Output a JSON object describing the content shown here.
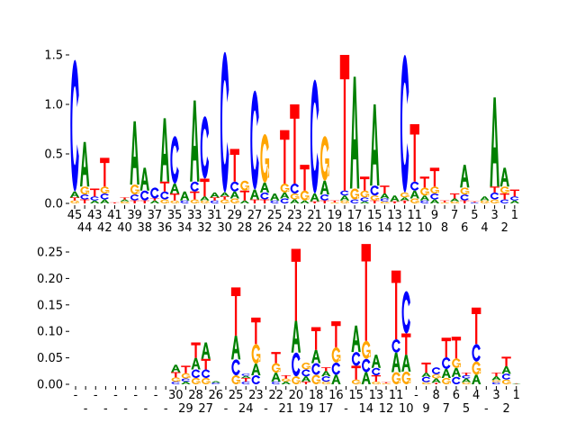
{
  "chart_data": [
    {
      "type": "sequence-logo",
      "title": "",
      "xlabel": "",
      "ylabel": "",
      "ylim": [
        0,
        1.5
      ],
      "yticks": [
        "0.0",
        "0.5",
        "1.0",
        "1.5"
      ],
      "ytick_values": [
        0,
        0.5,
        1.0,
        1.5
      ],
      "xtick_labels": [
        "45",
        "44",
        "43",
        "42",
        "41",
        "40",
        "39",
        "38",
        "37",
        "36",
        "35",
        "34",
        "33",
        "32",
        "31",
        "30",
        "29",
        "28",
        "27",
        "26",
        "25",
        "24",
        "23",
        "22",
        "21",
        "20",
        "19",
        "18",
        "17",
        "16",
        "15",
        "14",
        "13",
        "12",
        "11",
        "10",
        "9",
        "8",
        "7",
        "6",
        "5",
        "4",
        "3",
        "2",
        "1"
      ],
      "stacks": [
        [
          [
            "G",
            0.03
          ],
          [
            "T",
            0.03
          ],
          [
            "A",
            0.06
          ],
          [
            "C",
            1.33
          ]
        ],
        [
          [
            "T",
            0.04
          ],
          [
            "C",
            0.05
          ],
          [
            "G",
            0.08
          ],
          [
            "A",
            0.45
          ]
        ],
        [
          [
            "A",
            0.03
          ],
          [
            "C",
            0.04
          ],
          [
            "T",
            0.08
          ]
        ],
        [
          [
            "A",
            0.04
          ],
          [
            "C",
            0.06
          ],
          [
            "G",
            0.07
          ],
          [
            "T",
            0.29
          ]
        ],
        [
          [
            "T",
            0.01
          ]
        ],
        [
          [
            "G",
            0.02
          ],
          [
            "A",
            0.02
          ],
          [
            "T",
            0.02
          ]
        ],
        [
          [
            "T",
            0.03
          ],
          [
            "C",
            0.06
          ],
          [
            "G",
            0.1
          ],
          [
            "A",
            0.64
          ]
        ],
        [
          [
            "T",
            0.03
          ],
          [
            "C",
            0.1
          ],
          [
            "A",
            0.23
          ]
        ],
        [
          [
            "A",
            0.03
          ],
          [
            "T",
            0.02
          ],
          [
            "C",
            0.11
          ]
        ],
        [
          [
            "G",
            0.04
          ],
          [
            "C",
            0.08
          ],
          [
            "T",
            0.1
          ],
          [
            "A",
            0.64
          ]
        ],
        [
          [
            "G",
            0.03
          ],
          [
            "T",
            0.07
          ],
          [
            "A",
            0.1
          ],
          [
            "C",
            0.48
          ]
        ],
        [
          [
            "C",
            0.03
          ],
          [
            "A",
            0.09
          ]
        ],
        [
          [
            "G",
            0.04
          ],
          [
            "T",
            0.08
          ],
          [
            "C",
            0.1
          ],
          [
            "A",
            0.82
          ]
        ],
        [
          [
            "G",
            0.03
          ],
          [
            "A",
            0.04
          ],
          [
            "T",
            0.18
          ],
          [
            "C",
            0.63
          ]
        ],
        [
          [
            "C",
            0.03
          ],
          [
            "T",
            0.03
          ],
          [
            "A",
            0.05
          ]
        ],
        [
          [
            "G",
            0.04
          ],
          [
            "T",
            0.03
          ],
          [
            "A",
            0.04
          ],
          [
            "C",
            1.42
          ]
        ],
        [
          [
            "G",
            0.05
          ],
          [
            "A",
            0.07
          ],
          [
            "C",
            0.1
          ],
          [
            "T",
            0.33
          ]
        ],
        [
          [
            "A",
            0.03
          ],
          [
            "T",
            0.1
          ],
          [
            "G",
            0.1
          ]
        ],
        [
          [
            "T",
            0.04
          ],
          [
            "A",
            0.1
          ],
          [
            "C",
            1.0
          ]
        ],
        [
          [
            "T",
            0.04
          ],
          [
            "C",
            0.07
          ],
          [
            "A",
            0.1
          ],
          [
            "G",
            0.49
          ]
        ],
        [
          [
            "C",
            0.03
          ],
          [
            "A",
            0.07
          ]
        ],
        [
          [
            "C",
            0.05
          ],
          [
            "A",
            0.06
          ],
          [
            "G",
            0.09
          ],
          [
            "T",
            0.54
          ]
        ],
        [
          [
            "A",
            0.04
          ],
          [
            "G",
            0.06
          ],
          [
            "C",
            0.1
          ],
          [
            "T",
            0.8
          ]
        ],
        [
          [
            "A",
            0.03
          ],
          [
            "G",
            0.1
          ],
          [
            "T",
            0.26
          ]
        ],
        [
          [
            "T",
            0.02
          ],
          [
            "A",
            0.08
          ],
          [
            "C",
            1.15
          ]
        ],
        [
          [
            "T",
            0.03
          ],
          [
            "C",
            0.06
          ],
          [
            "A",
            0.14
          ],
          [
            "G",
            0.45
          ]
        ],
        [
          [
            "G",
            0.01
          ],
          [
            "T",
            0.02
          ]
        ],
        [
          [
            "G",
            0.03
          ],
          [
            "A",
            0.05
          ],
          [
            "C",
            0.05
          ],
          [
            "T",
            1.37
          ]
        ],
        [
          [
            "C",
            0.04
          ],
          [
            "G",
            0.11
          ],
          [
            "A",
            1.13
          ]
        ],
        [
          [
            "A",
            0.02
          ],
          [
            "C",
            0.04
          ],
          [
            "G",
            0.07
          ],
          [
            "T",
            0.14
          ]
        ],
        [
          [
            "T",
            0.03
          ],
          [
            "G",
            0.05
          ],
          [
            "C",
            0.1
          ],
          [
            "A",
            0.82
          ]
        ],
        [
          [
            "G",
            0.02
          ],
          [
            "C",
            0.03
          ],
          [
            "A",
            0.05
          ],
          [
            "T",
            0.08
          ]
        ],
        [
          [
            "T",
            0.02
          ],
          [
            "A",
            0.06
          ]
        ],
        [
          [
            "T",
            0.03
          ],
          [
            "A",
            0.03
          ],
          [
            "G",
            0.05
          ],
          [
            "C",
            1.39
          ]
        ],
        [
          [
            "G",
            0.05
          ],
          [
            "A",
            0.08
          ],
          [
            "C",
            0.09
          ],
          [
            "T",
            0.58
          ]
        ],
        [
          [
            "C",
            0.03
          ],
          [
            "A",
            0.05
          ],
          [
            "G",
            0.08
          ],
          [
            "T",
            0.11
          ]
        ],
        [
          [
            "A",
            0.04
          ],
          [
            "C",
            0.06
          ],
          [
            "G",
            0.07
          ],
          [
            "T",
            0.19
          ]
        ],
        [
          [
            "G",
            0.01
          ],
          [
            "T",
            0.02
          ]
        ],
        [
          [
            "G",
            0.02
          ],
          [
            "A",
            0.03
          ],
          [
            "T",
            0.05
          ]
        ],
        [
          [
            "T",
            0.03
          ],
          [
            "C",
            0.06
          ],
          [
            "G",
            0.07
          ],
          [
            "A",
            0.23
          ]
        ],
        [
          [
            "C",
            0.01
          ],
          [
            "T",
            0.01
          ]
        ],
        [
          [
            "G",
            0.03
          ],
          [
            "A",
            0.04
          ]
        ],
        [
          [
            "G",
            0.04
          ],
          [
            "C",
            0.07
          ],
          [
            "T",
            0.06
          ],
          [
            "A",
            0.9
          ]
        ],
        [
          [
            "C",
            0.04
          ],
          [
            "T",
            0.06
          ],
          [
            "G",
            0.07
          ],
          [
            "A",
            0.19
          ]
        ],
        [
          [
            "A",
            0.03
          ],
          [
            "C",
            0.04
          ],
          [
            "T",
            0.07
          ]
        ]
      ]
    },
    {
      "type": "sequence-logo",
      "title": "",
      "xlabel": "",
      "ylabel": "",
      "ylim": [
        0,
        0.25
      ],
      "yticks": [
        "0.00",
        "0.05",
        "0.10",
        "0.15",
        "0.20",
        "0.25"
      ],
      "ytick_values": [
        0,
        0.05,
        0.1,
        0.15,
        0.2,
        0.25
      ],
      "xtick_labels": [
        "-",
        "-",
        "-",
        "-",
        "-",
        "-",
        "-",
        "-",
        "-",
        "-",
        "30",
        "29",
        "28",
        "27",
        "26",
        "-",
        "25",
        "24",
        "23",
        "-",
        "22",
        "21",
        "20",
        "19",
        "18",
        "17",
        "16",
        "-",
        "15",
        "14",
        "13",
        "12",
        "11",
        "10",
        "-",
        "9",
        "8",
        "7",
        "6",
        "5",
        "4",
        "-",
        "3",
        "2",
        "1"
      ],
      "stacks": [
        [],
        [],
        [],
        [],
        [],
        [],
        [],
        [],
        [],
        [],
        [
          [
            "C",
            0.005
          ],
          [
            "G",
            0.008
          ],
          [
            "T",
            0.01
          ],
          [
            "A",
            0.014
          ]
        ],
        [
          [
            "A",
            0.005
          ],
          [
            "C",
            0.006
          ],
          [
            "G",
            0.01
          ],
          [
            "T",
            0.014
          ]
        ],
        [
          [
            "G",
            0.012
          ],
          [
            "C",
            0.016
          ],
          [
            "A",
            0.022
          ],
          [
            "T",
            0.029
          ]
        ],
        [
          [
            "G",
            0.012
          ],
          [
            "C",
            0.016
          ],
          [
            "T",
            0.02
          ],
          [
            "A",
            0.031
          ]
        ],
        [
          [
            "C",
            0.003
          ],
          [
            "A",
            0.003
          ]
        ],
        [],
        [
          [
            "G",
            0.017
          ],
          [
            "C",
            0.03
          ],
          [
            "A",
            0.045
          ],
          [
            "T",
            0.091
          ]
        ],
        [
          [
            "C",
            0.005
          ],
          [
            "T",
            0.007
          ],
          [
            "A",
            0.004
          ],
          [
            "C",
            0.004
          ]
        ],
        [
          [
            "C",
            0.017
          ],
          [
            "A",
            0.022
          ],
          [
            "G",
            0.037
          ],
          [
            "T",
            0.05
          ]
        ],
        [],
        [
          [
            "C",
            0.005
          ],
          [
            "A",
            0.017
          ],
          [
            "G",
            0.018
          ],
          [
            "T",
            0.021
          ]
        ],
        [
          [
            "A",
            0.005
          ],
          [
            "G",
            0.006
          ],
          [
            "T",
            0.006
          ]
        ],
        [
          [
            "G",
            0.015
          ],
          [
            "C",
            0.045
          ],
          [
            "A",
            0.06
          ],
          [
            "T",
            0.136
          ]
        ],
        [
          [
            "T",
            0.005
          ],
          [
            "A",
            0.01
          ],
          [
            "C",
            0.013
          ],
          [
            "G",
            0.013
          ]
        ],
        [
          [
            "G",
            0.018
          ],
          [
            "C",
            0.022
          ],
          [
            "A",
            0.025
          ],
          [
            "T",
            0.043
          ]
        ],
        [
          [
            "G",
            0.005
          ],
          [
            "C",
            0.01
          ],
          [
            "A",
            0.01
          ],
          [
            "T",
            0.007
          ]
        ],
        [
          [
            "A",
            0.018
          ],
          [
            "C",
            0.023
          ],
          [
            "G",
            0.029
          ],
          [
            "T",
            0.049
          ]
        ],
        [],
        [
          [
            "G",
            0.009
          ],
          [
            "T",
            0.026
          ],
          [
            "C",
            0.026
          ],
          [
            "A",
            0.05
          ]
        ],
        [
          [
            "A",
            0.023
          ],
          [
            "C",
            0.025
          ],
          [
            "G",
            0.034
          ],
          [
            "T",
            0.183
          ]
        ],
        [
          [
            "G",
            0.005
          ],
          [
            "T",
            0.012
          ],
          [
            "C",
            0.014
          ],
          [
            "A",
            0.025
          ]
        ],
        [
          [
            "G",
            0.002
          ],
          [
            "T",
            0.002
          ]
        ],
        [
          [
            "G",
            0.023
          ],
          [
            "A",
            0.037
          ],
          [
            "C",
            0.025
          ],
          [
            "T",
            0.13
          ]
        ],
        [
          [
            "G",
            0.024
          ],
          [
            "A",
            0.032
          ],
          [
            "T",
            0.04
          ],
          [
            "C",
            0.08
          ]
        ],
        [],
        [
          [
            "G",
            0.004
          ],
          [
            "C",
            0.01
          ],
          [
            "A",
            0.008
          ],
          [
            "T",
            0.019
          ]
        ],
        [
          [
            "T",
            0.003
          ],
          [
            "A",
            0.008
          ],
          [
            "G",
            0.008
          ],
          [
            "C",
            0.013
          ]
        ],
        [
          [
            "G",
            0.012
          ],
          [
            "A",
            0.017
          ],
          [
            "C",
            0.022
          ],
          [
            "T",
            0.037
          ]
        ],
        [
          [
            "C",
            0.014
          ],
          [
            "A",
            0.017
          ],
          [
            "G",
            0.018
          ],
          [
            "T",
            0.041
          ]
        ],
        [
          [
            "G",
            0.004
          ],
          [
            "A",
            0.007
          ],
          [
            "C",
            0.006
          ],
          [
            "T",
            0.005
          ]
        ],
        [
          [
            "A",
            0.018
          ],
          [
            "G",
            0.025
          ],
          [
            "C",
            0.033
          ],
          [
            "T",
            0.069
          ]
        ],
        [],
        [
          [
            "C",
            0.004
          ],
          [
            "G",
            0.004
          ],
          [
            "A",
            0.007
          ],
          [
            "T",
            0.007
          ]
        ],
        [
          [
            "G",
            0.009
          ],
          [
            "C",
            0.011
          ],
          [
            "A",
            0.014
          ],
          [
            "T",
            0.018
          ]
        ],
        [
          [
            "A",
            0.001
          ],
          [
            "T",
            0.001
          ]
        ]
      ]
    }
  ],
  "colors": {
    "A": "#008000",
    "C": "#0000ff",
    "G": "#ffa500",
    "T": "#ff0000"
  }
}
